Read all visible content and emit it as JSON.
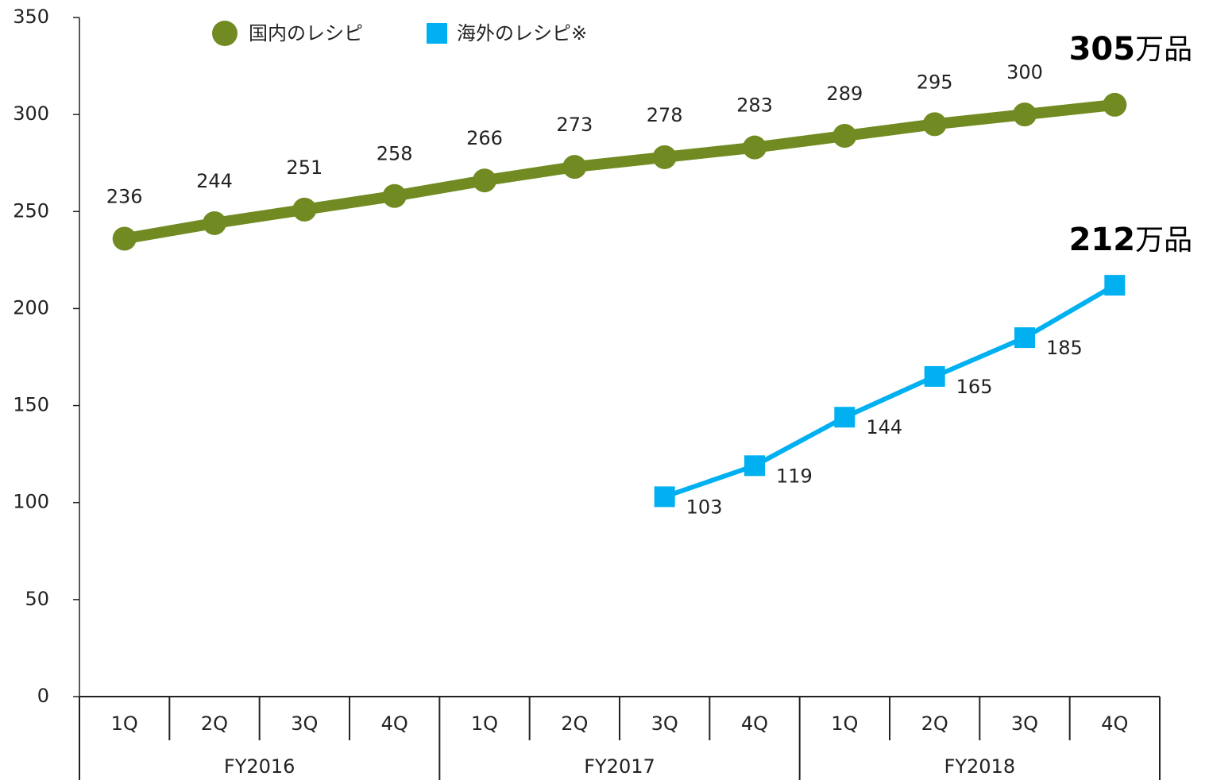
{
  "chart_data": {
    "type": "line",
    "categories": [
      "1Q",
      "2Q",
      "3Q",
      "4Q",
      "1Q",
      "2Q",
      "3Q",
      "4Q",
      "1Q",
      "2Q",
      "3Q",
      "4Q"
    ],
    "category_groups": [
      "FY2016",
      "FY2017",
      "FY2018"
    ],
    "series": [
      {
        "name": "国内のレシピ",
        "color": "#718b22",
        "marker": "circle",
        "values": [
          236,
          244,
          251,
          258,
          266,
          273,
          278,
          283,
          289,
          295,
          300,
          305
        ],
        "value_labels": [
          "236",
          "244",
          "251",
          "258",
          "266",
          "273",
          "278",
          "283",
          "289",
          "295",
          "300",
          "305万品"
        ]
      },
      {
        "name": "海外のレシピ※",
        "color": "#00b0f0",
        "marker": "square",
        "values": [
          null,
          null,
          null,
          null,
          null,
          null,
          103,
          119,
          144,
          165,
          185,
          212
        ],
        "value_labels": [
          null,
          null,
          null,
          null,
          null,
          null,
          "103",
          "119",
          "144",
          "165",
          "185",
          "212万品"
        ]
      }
    ],
    "ylim": [
      0,
      350
    ],
    "yticks": [
      0,
      50,
      100,
      150,
      200,
      250,
      300,
      350
    ],
    "grid": false
  }
}
